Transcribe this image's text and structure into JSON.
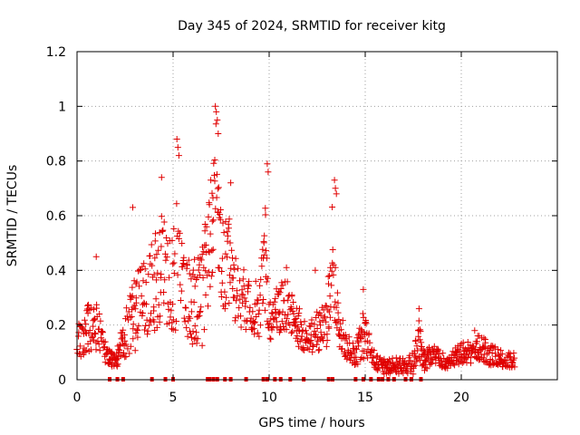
{
  "chart_data": {
    "type": "scatter",
    "title": "Day 345 of 2024, SRMTID for receiver kitg",
    "xlabel": "GPS time / hours",
    "ylabel": "SRMTID / TECUs",
    "xlim": [
      0,
      25
    ],
    "ylim": [
      0,
      1.2
    ],
    "grid": true,
    "x_ticks": [
      0,
      5,
      10,
      15,
      20
    ],
    "y_ticks": [
      0,
      0.2,
      0.4,
      0.6,
      0.8,
      1.0,
      1.2
    ],
    "y_tick_labels": [
      "0",
      "0.2",
      "0.4",
      "0.6",
      "0.8",
      "1",
      "1.2"
    ],
    "marker": "+",
    "marker_color": "#e00000",
    "series_name": "SRMTID",
    "envelope_hours": [
      0,
      0.5,
      1,
      1.5,
      2,
      2.5,
      3,
      3.5,
      4,
      4.5,
      5,
      5.3,
      5.5,
      6,
      6.5,
      7,
      7.2,
      7.5,
      8,
      8.5,
      9,
      9.5,
      9.8,
      10,
      10.5,
      11,
      11.5,
      12,
      12.5,
      13,
      13.3,
      13.6,
      14,
      14.5,
      15,
      15.5,
      16,
      16.5,
      17,
      17.5,
      17.8,
      18,
      18.5,
      19,
      19.5,
      20,
      20.5,
      21,
      21.5,
      22,
      22.5,
      22.8
    ],
    "envelope_center": [
      0.14,
      0.18,
      0.2,
      0.09,
      0.07,
      0.16,
      0.25,
      0.28,
      0.35,
      0.42,
      0.35,
      0.45,
      0.32,
      0.28,
      0.3,
      0.55,
      0.75,
      0.45,
      0.4,
      0.3,
      0.28,
      0.25,
      0.45,
      0.22,
      0.25,
      0.28,
      0.2,
      0.14,
      0.18,
      0.2,
      0.45,
      0.2,
      0.12,
      0.09,
      0.18,
      0.06,
      0.05,
      0.05,
      0.05,
      0.06,
      0.15,
      0.07,
      0.09,
      0.07,
      0.07,
      0.1,
      0.1,
      0.12,
      0.09,
      0.08,
      0.07,
      0.07
    ],
    "envelope_spread": [
      0.06,
      0.09,
      0.1,
      0.04,
      0.03,
      0.08,
      0.15,
      0.15,
      0.18,
      0.2,
      0.2,
      0.25,
      0.18,
      0.15,
      0.18,
      0.22,
      0.22,
      0.18,
      0.18,
      0.12,
      0.1,
      0.1,
      0.2,
      0.08,
      0.1,
      0.1,
      0.08,
      0.05,
      0.08,
      0.08,
      0.2,
      0.08,
      0.05,
      0.04,
      0.1,
      0.03,
      0.03,
      0.03,
      0.03,
      0.04,
      0.08,
      0.04,
      0.04,
      0.03,
      0.03,
      0.04,
      0.04,
      0.05,
      0.04,
      0.03,
      0.03,
      0.03
    ],
    "peak_points": [
      {
        "x": 1.0,
        "y": 0.45
      },
      {
        "x": 2.9,
        "y": 0.63
      },
      {
        "x": 4.4,
        "y": 0.74
      },
      {
        "x": 5.2,
        "y": 0.88
      },
      {
        "x": 5.25,
        "y": 0.85
      },
      {
        "x": 5.3,
        "y": 0.82
      },
      {
        "x": 7.2,
        "y": 1.0
      },
      {
        "x": 7.25,
        "y": 0.98
      },
      {
        "x": 7.3,
        "y": 0.95
      },
      {
        "x": 7.35,
        "y": 0.9
      },
      {
        "x": 8.0,
        "y": 0.72
      },
      {
        "x": 9.9,
        "y": 0.79
      },
      {
        "x": 9.95,
        "y": 0.76
      },
      {
        "x": 10.9,
        "y": 0.41
      },
      {
        "x": 12.4,
        "y": 0.4
      },
      {
        "x": 13.4,
        "y": 0.73
      },
      {
        "x": 13.45,
        "y": 0.7
      },
      {
        "x": 13.5,
        "y": 0.68
      },
      {
        "x": 14.9,
        "y": 0.33
      },
      {
        "x": 17.8,
        "y": 0.26
      },
      {
        "x": 20.7,
        "y": 0.18
      }
    ],
    "zero_markers_hours": [
      1.7,
      2.1,
      2.4,
      3.9,
      4.6,
      5.0,
      6.8,
      6.9,
      7.1,
      7.3,
      7.7,
      8.0,
      8.8,
      9.7,
      9.9,
      10.3,
      10.6,
      11.1,
      11.8,
      13.1,
      13.3,
      14.5,
      14.9,
      15.3,
      15.7,
      15.9,
      16.2,
      16.5,
      17.1,
      17.4,
      17.9
    ]
  }
}
